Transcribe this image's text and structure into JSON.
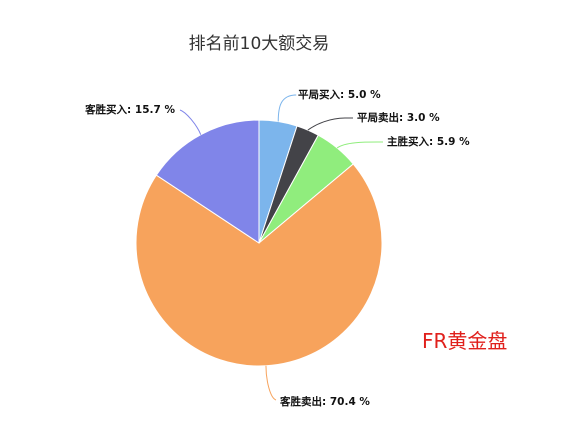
{
  "chart_data": {
    "type": "pie",
    "title": "排名前10大额交易",
    "slices": [
      {
        "name": "平局买入",
        "value": 5.0,
        "label": "平局买入: 5.0 %",
        "color": "#7cb5ec"
      },
      {
        "name": "平局卖出",
        "value": 3.0,
        "label": "平局卖出: 3.0 %",
        "color": "#434348"
      },
      {
        "name": "主胜买入",
        "value": 5.9,
        "label": "主胜买入: 5.9 %",
        "color": "#90ed7d"
      },
      {
        "name": "客胜卖出",
        "value": 70.4,
        "label": "客胜卖出: 70.4 %",
        "color": "#f7a35c"
      },
      {
        "name": "客胜买入",
        "value": 15.7,
        "label": "客胜买入: 15.7 %",
        "color": "#8085e9"
      }
    ],
    "start_angle_deg": 0,
    "direction": "clockwise",
    "data_labels": "outside-with-connectors"
  },
  "watermark": {
    "text": "FR黄金盘",
    "color": "#e0201c"
  }
}
